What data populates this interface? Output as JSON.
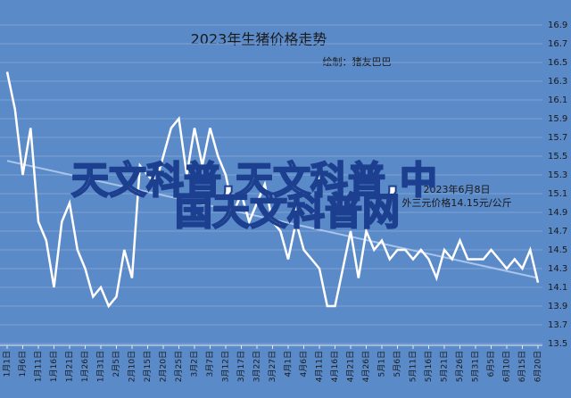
{
  "chart_data": {
    "type": "line",
    "title": "2023年生猪价格走势",
    "subtitle": "绘制：猪友巴巴",
    "categories": [
      "1月1日",
      null,
      "1月6日",
      null,
      "1月11日",
      null,
      "1月16日",
      null,
      "1月21日",
      null,
      "1月26日",
      null,
      "1月31日",
      null,
      "2月5日",
      null,
      "2月10日",
      null,
      "2月15日",
      null,
      "2月20日",
      null,
      "2月25日",
      null,
      "3月2日",
      null,
      "3月7日",
      null,
      "3月12日",
      null,
      "3月17日",
      null,
      "3月22日",
      null,
      "3月27日",
      null,
      "4月1日",
      null,
      "4月6日",
      null,
      "4月11日",
      null,
      "4月16日",
      null,
      "4月21日",
      null,
      "4月26日",
      null,
      "5月1日",
      null,
      "5月6日",
      null,
      "5月11日",
      null,
      "5月16日",
      null,
      "5月21日",
      null,
      "5月26日",
      null,
      "5月31日",
      null,
      "6月5日",
      null,
      "6月10日",
      null,
      "6月15日",
      null,
      "6月20日"
    ],
    "values": [
      16.4,
      16.0,
      15.3,
      15.8,
      14.8,
      14.6,
      14.1,
      14.8,
      15.0,
      14.5,
      14.3,
      14.0,
      14.1,
      13.9,
      14.0,
      14.5,
      14.2,
      15.4,
      15.3,
      15.2,
      15.5,
      15.8,
      15.9,
      15.3,
      15.8,
      15.4,
      15.8,
      15.5,
      15.3,
      14.9,
      15.1,
      14.8,
      15.0,
      15.2,
      14.8,
      14.7,
      14.4,
      14.8,
      14.5,
      14.4,
      14.3,
      13.9,
      13.9,
      14.3,
      14.7,
      14.2,
      14.7,
      14.5,
      14.6,
      14.4,
      14.5,
      14.5,
      14.4,
      14.5,
      14.4,
      14.2,
      14.5,
      14.4,
      14.6,
      14.4,
      14.4,
      14.4,
      14.5,
      14.4,
      14.3,
      14.4,
      14.3,
      14.5,
      14.15
    ],
    "color": "#ffffff",
    "trendline": [
      15.45,
      14.2
    ],
    "trendline_color": "#a9c4ea",
    "ylim": [
      13.5,
      16.9
    ],
    "yticks": [
      13.5,
      13.7,
      13.9,
      14.1,
      14.3,
      14.5,
      14.7,
      14.9,
      15.1,
      15.3,
      15.5,
      15.7,
      15.9,
      16.1,
      16.3,
      16.5,
      16.7,
      16.9
    ],
    "grid": true,
    "annotation": [
      "2023年6月8日",
      "外三元价格14.15元/公斤"
    ],
    "watermark": [
      "天文科普,天文科普,中",
      "国天文科普网"
    ]
  }
}
